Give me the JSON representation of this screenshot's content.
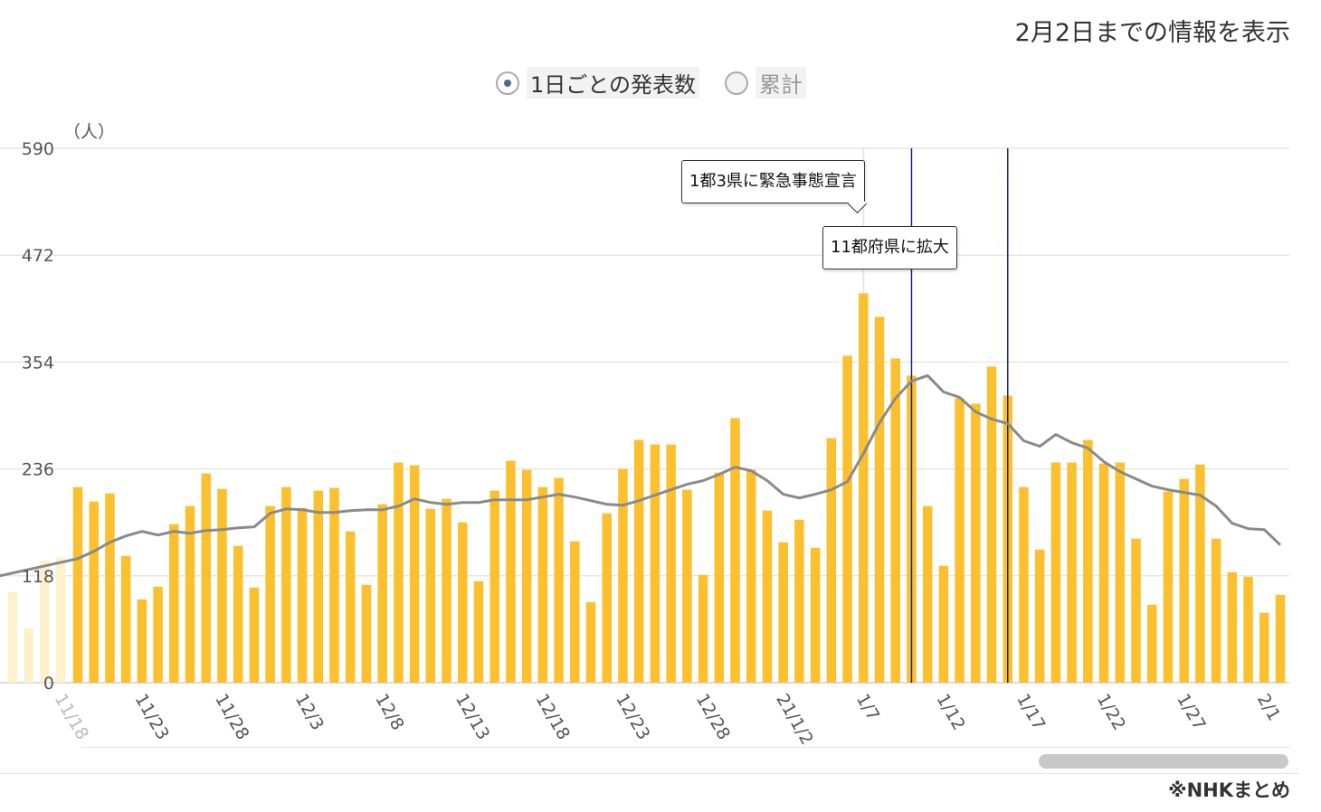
{
  "header": {
    "updated_label": "2月2日までの情報を表示"
  },
  "toggle": {
    "daily_label": "1日ごとの発表数",
    "cumulative_label": "累計",
    "selected": "daily"
  },
  "source_label": "※NHKまとめ",
  "colors": {
    "bar": "#fbc02d",
    "bar_faded": "#fdf1cc",
    "avg_line": "#8a8a8a",
    "event_line": "#1a237e",
    "grid": "#e6e6e6"
  },
  "chart_data": {
    "type": "bar",
    "ylabel": "（人）",
    "ylim": [
      0,
      590
    ],
    "yticks": [
      0,
      118,
      236,
      354,
      472,
      590
    ],
    "grid": true,
    "x_tick_labels": [
      "11/18",
      "11/23",
      "11/28",
      "12/3",
      "12/8",
      "12/13",
      "12/18",
      "12/23",
      "12/28",
      "21/1/2",
      "1/7",
      "1/12",
      "1/17",
      "1/22",
      "1/27",
      "2/1"
    ],
    "x_tick_start_index": 4,
    "x_tick_step": 5,
    "faded_values": [
      100,
      60,
      135,
      138
    ],
    "values": [
      216,
      200,
      209,
      140,
      92,
      106,
      175,
      195,
      231,
      214,
      151,
      105,
      195,
      216,
      193,
      212,
      215,
      167,
      108,
      197,
      243,
      240,
      192,
      203,
      177,
      112,
      212,
      245,
      235,
      216,
      226,
      156,
      89,
      187,
      236,
      268,
      263,
      263,
      213,
      119,
      232,
      292,
      235,
      190,
      155,
      180,
      149,
      270,
      361,
      430,
      404,
      358,
      339,
      195,
      129,
      314,
      308,
      349,
      317,
      216,
      147,
      243,
      243,
      268,
      242,
      243,
      159,
      86,
      211,
      225,
      241,
      159,
      122,
      117,
      77,
      97
    ],
    "moving_average": [
      137,
      145,
      155,
      162,
      167,
      163,
      167,
      165,
      168,
      169,
      171,
      172,
      187,
      192,
      191,
      188,
      188,
      190,
      191,
      191,
      195,
      203,
      199,
      197,
      199,
      199,
      202,
      202,
      202,
      205,
      208,
      205,
      201,
      197,
      196,
      201,
      207,
      213,
      219,
      223,
      230,
      238,
      234,
      223,
      208,
      204,
      208,
      213,
      222,
      253,
      287,
      314,
      333,
      339,
      321,
      315,
      299,
      291,
      286,
      267,
      261,
      274,
      265,
      259,
      244,
      233,
      225,
      217,
      213,
      210,
      207,
      195,
      176,
      170,
      169,
      152
    ],
    "events": [
      {
        "label": "1都3県に緊急事態宣言",
        "date": "1/7"
      },
      {
        "label": "11都府県に拡大",
        "date": "1/13"
      }
    ]
  }
}
